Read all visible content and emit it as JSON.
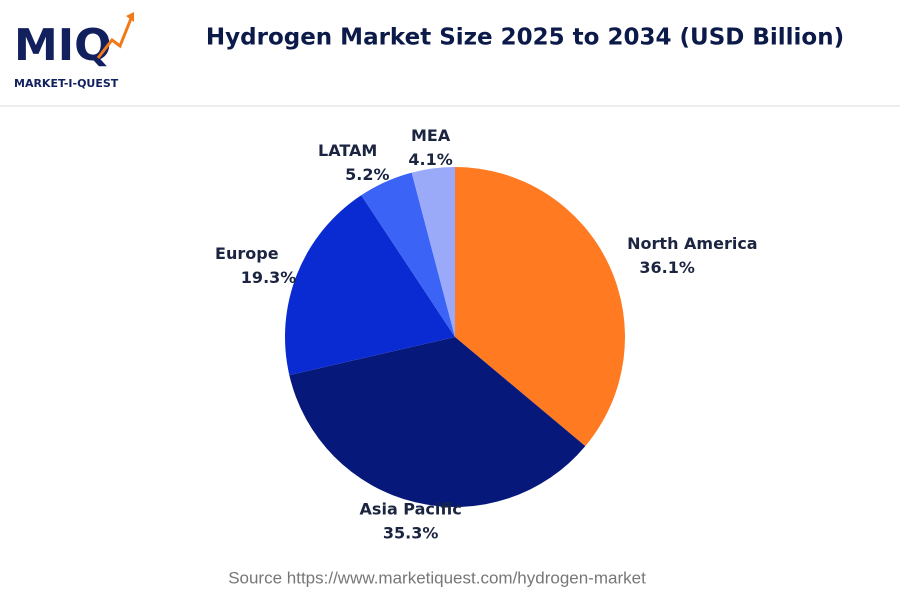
{
  "logo": {
    "text": "MIQ",
    "tagline": "MARKET-I-QUEST"
  },
  "chart_data": {
    "type": "pie",
    "title": "Hydrogen Market Size 2025 to 2034 (USD Billion)",
    "categories": [
      "North America",
      "Asia Pacific",
      "Europe",
      "LATAM",
      "MEA"
    ],
    "values": [
      36.1,
      35.3,
      19.3,
      5.2,
      4.1
    ],
    "value_labels": [
      "36.1%",
      "35.3%",
      "19.3%",
      "5.2%",
      "4.1%"
    ],
    "colors": [
      "#ff7a21",
      "#06197a",
      "#0a2bd1",
      "#3b63f5",
      "#9aaaf9"
    ],
    "source": "Source https://www.marketiquest.com/hydrogen-market"
  }
}
